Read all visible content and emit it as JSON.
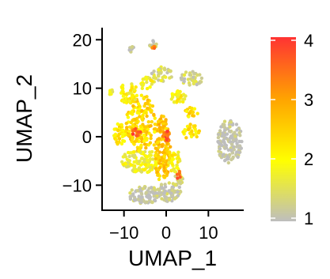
{
  "chart_data": {
    "type": "scatter",
    "title": "",
    "xlabel": "UMAP_1",
    "ylabel": "UMAP_2",
    "xlim": [
      -15,
      18
    ],
    "ylim": [
      -15,
      22
    ],
    "x_ticks": [
      -10,
      0,
      10
    ],
    "y_ticks": [
      -10,
      0,
      10,
      20
    ],
    "x_tick_labels": [
      "−10",
      "0",
      "10"
    ],
    "y_tick_labels": [
      "−10",
      "0",
      "10",
      "20"
    ],
    "grid": false,
    "legend": {
      "position": "right",
      "type": "colorbar",
      "range": [
        1,
        4
      ],
      "ticks": [
        1,
        2,
        3,
        4
      ],
      "tick_labels": [
        "1",
        "2",
        "3",
        "4"
      ]
    },
    "colors": {
      "low": "#bebebe",
      "mid": "#ffff00",
      "high": "#ff3333"
    },
    "clusters": [
      {
        "cx": 15,
        "cy": -1,
        "rx": 3,
        "ry": 4.5,
        "level": 1.0,
        "n": 140
      },
      {
        "cx": -5,
        "cy": -12,
        "rx": 4,
        "ry": 1.8,
        "level": 1.1,
        "n": 90
      },
      {
        "cx": 0.5,
        "cy": -11.5,
        "rx": 3,
        "ry": 2,
        "level": 1.15,
        "n": 60
      },
      {
        "cx": -6,
        "cy": -5,
        "rx": 4.5,
        "ry": 2.5,
        "level": 1.8,
        "n": 120
      },
      {
        "cx": -1,
        "cy": -2.5,
        "rx": 2,
        "ry": 7,
        "level": 2.6,
        "n": 150
      },
      {
        "cx": -6,
        "cy": 3,
        "rx": 3.5,
        "ry": 6,
        "level": 2.4,
        "n": 170
      },
      {
        "cx": -11,
        "cy": 0.5,
        "rx": 1.6,
        "ry": 2.2,
        "level": 2.2,
        "n": 40
      },
      {
        "cx": -9,
        "cy": 9,
        "rx": 2.2,
        "ry": 2.2,
        "level": 2.0,
        "n": 45
      },
      {
        "cx": -4.5,
        "cy": 11,
        "rx": 1.8,
        "ry": 1.4,
        "level": 1.9,
        "n": 25
      },
      {
        "cx": -1,
        "cy": 13,
        "rx": 2.5,
        "ry": 1.6,
        "level": 1.4,
        "n": 35
      },
      {
        "cx": 6,
        "cy": 12,
        "rx": 2.5,
        "ry": 1.8,
        "level": 1.3,
        "n": 40
      },
      {
        "cx": 3,
        "cy": 8,
        "rx": 2,
        "ry": 1.5,
        "level": 2.0,
        "n": 30
      },
      {
        "cx": 6,
        "cy": 5,
        "rx": 1.5,
        "ry": 1.2,
        "level": 2.3,
        "n": 18
      },
      {
        "cx": 6,
        "cy": 1,
        "rx": 2,
        "ry": 1.6,
        "level": 2.2,
        "n": 28
      },
      {
        "cx": 2,
        "cy": -5,
        "rx": 1.5,
        "ry": 2.5,
        "level": 2.0,
        "n": 35
      },
      {
        "cx": 3,
        "cy": -9,
        "rx": 1.2,
        "ry": 1.5,
        "level": 1.3,
        "n": 18
      },
      {
        "cx": -3,
        "cy": 19,
        "rx": 1,
        "ry": 0.8,
        "level": 1.3,
        "n": 12
      },
      {
        "cx": -8,
        "cy": 18,
        "rx": 1,
        "ry": 0.6,
        "level": 1.1,
        "n": 8
      },
      {
        "cx": -13,
        "cy": 9,
        "rx": 0.7,
        "ry": 0.7,
        "level": 1.6,
        "n": 6
      },
      {
        "cx": 0,
        "cy": 0,
        "rx": 0.8,
        "ry": 1.3,
        "level": 3.6,
        "n": 20
      },
      {
        "cx": -7,
        "cy": 1,
        "rx": 1.2,
        "ry": 0.8,
        "level": 3.6,
        "n": 14
      },
      {
        "cx": -3,
        "cy": 18.5,
        "rx": 0.4,
        "ry": 0.4,
        "level": 3.5,
        "n": 5
      },
      {
        "cx": 3,
        "cy": -8,
        "rx": 0.5,
        "ry": 0.9,
        "level": 3.5,
        "n": 6
      }
    ]
  }
}
